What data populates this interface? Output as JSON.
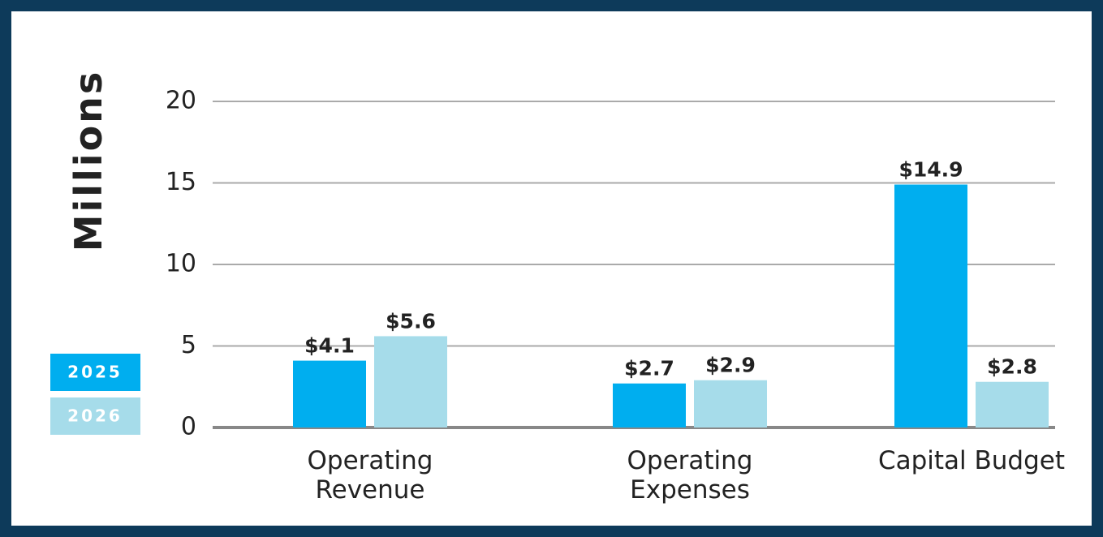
{
  "chart_data": {
    "type": "bar",
    "y_label": "Millions",
    "categories": [
      "Operating Revenue",
      "Operating Expenses",
      "Capital Budget"
    ],
    "series": [
      {
        "name": "2025",
        "color": "#00aeef",
        "values": [
          4.1,
          2.7,
          14.9
        ],
        "value_labels": [
          "$4.1",
          "$2.7",
          "$14.9"
        ]
      },
      {
        "name": "2026",
        "color": "#a6dcea",
        "values": [
          5.6,
          2.9,
          2.8
        ],
        "value_labels": [
          "$5.6",
          "$2.9",
          "$2.8"
        ]
      }
    ],
    "ylim": [
      0,
      20
    ],
    "yticks": [
      0,
      5,
      10,
      15,
      20
    ],
    "grid": true,
    "legend": "left"
  }
}
